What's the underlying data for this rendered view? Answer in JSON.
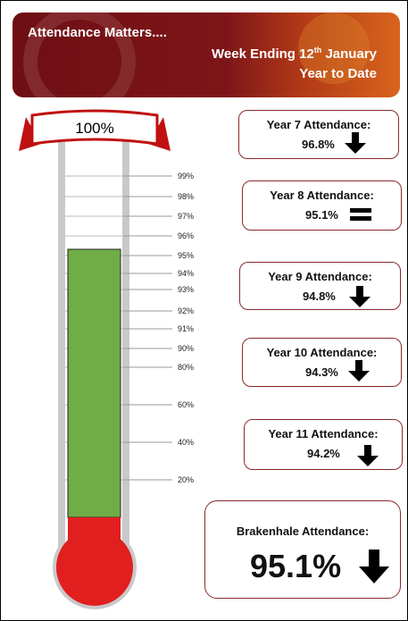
{
  "header": {
    "title": "Attendance Matters....",
    "week_ending": {
      "text": "Week Ending 12",
      "sup": "th",
      "rest": " January"
    },
    "subtitle": "Year to Date"
  },
  "thermometer": {
    "top_label": "100%",
    "ticks": [
      "99%",
      "98%",
      "97%",
      "96%",
      "95%",
      "94%",
      "93%",
      "92%",
      "91%",
      "90%",
      "80%",
      "60%",
      "40%",
      "20%"
    ]
  },
  "cards": [
    {
      "label": "Year 7 Attendance:",
      "value": "96.8%"
    },
    {
      "label": "Year 8 Attendance:",
      "value": "95.1%"
    },
    {
      "label": "Year 9 Attendance:",
      "value": "94.8%"
    },
    {
      "label": "Year 10 Attendance:",
      "value": "94.3%"
    },
    {
      "label": "Year 11 Attendance:",
      "value": "94.2%"
    }
  ],
  "school": {
    "label": "Brakenhale Attendance:",
    "value": "95.1%"
  }
}
